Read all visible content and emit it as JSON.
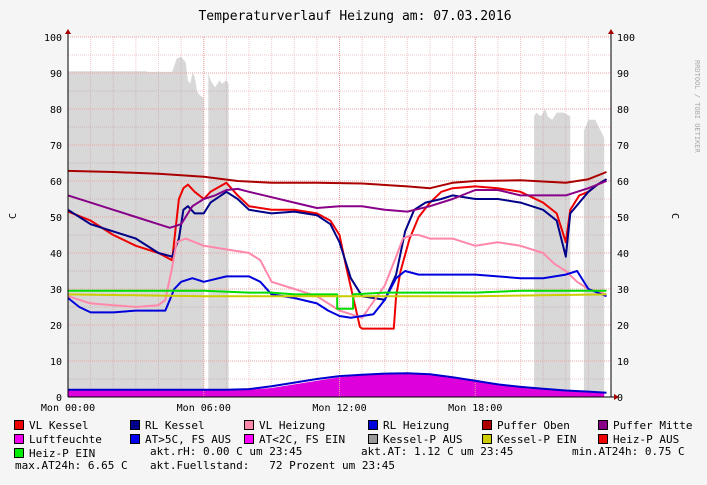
{
  "chart_data": {
    "type": "line",
    "title": "Temperaturverlauf Heizung am: 07.03.2016",
    "ylabel": "C",
    "ylabel_right": "C",
    "side_text": "RRDTOOL / TOBI OETIKER",
    "ylim": [
      0,
      100
    ],
    "xlim_hours": [
      0,
      24
    ],
    "y_ticks": [
      0,
      10,
      20,
      30,
      40,
      50,
      60,
      70,
      80,
      90,
      100
    ],
    "x_ticks": [
      {
        "h": 0,
        "label": "Mon 00:00"
      },
      {
        "h": 6,
        "label": "Mon 06:00"
      },
      {
        "h": 12,
        "label": "Mon 12:00"
      },
      {
        "h": 18,
        "label": "Mon 18:00"
      }
    ],
    "grid": true,
    "legend_position": "bottom",
    "areas": [
      {
        "name": "Kessel-P AUS",
        "color": "#999999",
        "x": [
          0,
          0,
          3.5,
          3.5,
          4.6,
          4.7,
          4.8,
          5.0,
          5.2,
          5.3,
          5.4,
          5.5,
          5.6,
          5.7,
          5.8,
          6.0,
          6.0,
          6.2,
          6.2,
          6.3,
          6.5,
          6.7,
          6.8,
          7.0,
          7.1,
          7.1,
          20.6,
          20.6,
          20.7,
          20.9,
          21.1,
          21.2,
          21.4,
          21.6,
          21.9,
          22.2,
          22.2,
          22.8,
          22.8,
          23.0,
          23.3,
          23.7,
          23.7
        ],
        "y": [
          0,
          90.5,
          90.5,
          90.3,
          90.3,
          92,
          94,
          94.5,
          93,
          88,
          87,
          90,
          89,
          85,
          84,
          83,
          0,
          0,
          90,
          88,
          86,
          88,
          87,
          88,
          87,
          0,
          0,
          78,
          79,
          78,
          80,
          78,
          77,
          79,
          79,
          78,
          0,
          0,
          74,
          77,
          77,
          72,
          0
        ]
      },
      {
        "name": "Luftfeuchte",
        "color": "#dd00dd",
        "x": [
          0,
          1,
          2,
          4,
          6,
          8,
          9,
          10,
          11,
          12,
          13,
          14,
          15,
          16,
          17,
          18,
          19,
          20,
          21,
          22,
          23,
          23.7,
          23.7,
          0
        ],
        "y": [
          1.8,
          2,
          2.2,
          2.1,
          1.9,
          2,
          2.5,
          3.5,
          4.5,
          5.5,
          6,
          6.3,
          6.4,
          6.1,
          5.4,
          4.5,
          3.5,
          2.8,
          2.3,
          1.8,
          1.5,
          1.4,
          0,
          0
        ]
      }
    ],
    "series": [
      {
        "name": "VL Kessel",
        "color": "#ee0000",
        "width": 2,
        "x": [
          0,
          1,
          2,
          3,
          4,
          4.6,
          4.9,
          5.1,
          5.3,
          5.6,
          6,
          6.3,
          7,
          7.5,
          8,
          9,
          10,
          11,
          11.6,
          12,
          12.3,
          12.9,
          13,
          14,
          14.4,
          14.5,
          14.7,
          15.1,
          15.5,
          16,
          16.5,
          17,
          18,
          19,
          20,
          21,
          21.6,
          22,
          22.2,
          22.6,
          23,
          23.4,
          23.8
        ],
        "y": [
          51.5,
          49,
          45,
          42,
          40,
          38,
          55,
          58,
          59,
          57,
          55,
          57,
          59.5,
          56,
          53,
          52,
          52,
          51,
          49,
          45,
          36,
          19.5,
          19,
          19,
          19,
          28,
          35,
          44,
          50,
          54,
          57,
          58,
          58.5,
          58,
          57,
          54,
          51,
          43,
          52,
          56,
          57,
          59,
          60.5
        ]
      },
      {
        "name": "RL Kessel",
        "color": "#000088",
        "width": 2,
        "x": [
          0,
          1,
          2,
          3,
          4,
          4.6,
          4.9,
          5.1,
          5.3,
          5.6,
          6,
          6.3,
          7,
          7.5,
          8,
          9,
          10,
          11,
          11.6,
          12,
          12.5,
          13,
          14,
          14.5,
          14.9,
          15.3,
          15.8,
          16.5,
          17,
          18,
          19,
          20,
          21,
          21.6,
          22,
          22.2,
          22.6,
          23,
          23.4,
          23.8
        ],
        "y": [
          52,
          48,
          46,
          44,
          40,
          39,
          44,
          52,
          53,
          51,
          51,
          54,
          57,
          55,
          52,
          51,
          51.5,
          50.5,
          48,
          43,
          33,
          28,
          27,
          34,
          46,
          52,
          54,
          55,
          56,
          55,
          55,
          54,
          52,
          49,
          39,
          51,
          54,
          57,
          59,
          60.5
        ]
      },
      {
        "name": "VL Heizung",
        "color": "#ff88aa",
        "width": 2,
        "x": [
          0,
          1,
          2,
          3,
          4,
          4.3,
          4.6,
          4.8,
          5.2,
          5.6,
          6,
          7,
          8,
          8.5,
          9,
          10,
          11,
          11.5,
          12,
          12.5,
          13,
          14,
          14.5,
          14.8,
          15.2,
          15.5,
          16,
          17,
          18,
          19,
          20,
          21,
          21.5,
          22,
          22.5,
          23,
          23.8
        ],
        "y": [
          28,
          26,
          25.5,
          25,
          25.5,
          27,
          36,
          43,
          44,
          43,
          42,
          41,
          40,
          38,
          32,
          30,
          28,
          26,
          24,
          23,
          22,
          31,
          39,
          44,
          45,
          45,
          44,
          44,
          42,
          43,
          42,
          40,
          37,
          35,
          32,
          30,
          28.5
        ]
      },
      {
        "name": "RL Heizung",
        "color": "#0000dd",
        "width": 2,
        "x": [
          0,
          0.5,
          1,
          2,
          3,
          4,
          4.3,
          4.7,
          5.0,
          5.5,
          6,
          7,
          8,
          8.5,
          9,
          10,
          11,
          11.5,
          12,
          12.5,
          13,
          13.5,
          14,
          14.5,
          14.9,
          15.5,
          16,
          17,
          18,
          19,
          20,
          21,
          22,
          22.5,
          23,
          23.8
        ],
        "y": [
          27.5,
          25,
          23.5,
          23.5,
          24,
          24,
          24,
          30,
          32,
          33,
          32,
          33.5,
          33.5,
          32,
          28.5,
          27.5,
          26,
          24,
          22.5,
          22,
          22.5,
          23,
          27,
          33,
          35,
          34,
          34,
          34,
          34,
          33.5,
          33,
          33,
          34,
          35,
          30,
          28
        ]
      },
      {
        "name": "Puffer Oben",
        "color": "#aa0000",
        "width": 2,
        "x": [
          0,
          2,
          4,
          6,
          7.5,
          9,
          11,
          13,
          15,
          16,
          17,
          18,
          20,
          22,
          23,
          23.8
        ],
        "y": [
          62.8,
          62.5,
          62,
          61.2,
          60,
          59.5,
          59.5,
          59.3,
          58.5,
          58,
          59.5,
          60,
          60.2,
          59.5,
          60.5,
          62.5
        ]
      },
      {
        "name": "Puffer Mitte",
        "color": "#880088",
        "width": 2,
        "x": [
          0,
          1,
          2,
          3,
          4,
          4.5,
          5,
          5.5,
          6,
          6.5,
          7,
          7.5,
          8,
          9,
          10,
          11,
          12,
          13,
          14,
          15,
          16,
          17,
          18,
          19,
          20,
          21,
          22,
          23,
          23.8
        ],
        "y": [
          56,
          54,
          52,
          50,
          48,
          47,
          48,
          53,
          55,
          56,
          57.5,
          57.8,
          57,
          55.5,
          54,
          52.5,
          53,
          53,
          52,
          51.5,
          53,
          55,
          57.5,
          57.5,
          56,
          56,
          56,
          58,
          60
        ]
      },
      {
        "name": "AT>5C, FS AUS",
        "color": "#0000cc",
        "width": 2,
        "x": [
          0,
          1,
          2,
          3,
          4,
          5,
          6,
          7,
          8,
          9,
          10,
          11,
          12,
          13,
          14,
          15,
          16,
          17,
          18,
          19,
          20,
          21,
          22,
          23,
          23.8
        ],
        "y": [
          2,
          2,
          2,
          2,
          2,
          2,
          2,
          2,
          2.2,
          3,
          4,
          5,
          5.8,
          6.2,
          6.5,
          6.6,
          6.3,
          5.5,
          4.5,
          3.5,
          2.8,
          2.3,
          1.8,
          1.5,
          1.2
        ]
      },
      {
        "name": "Heiz-P EIN",
        "color": "#00dd00",
        "width": 2,
        "x": [
          0,
          6,
          8,
          9,
          10,
          11,
          11.9,
          11.9,
          12.6,
          12.6,
          14,
          16,
          18,
          20,
          22,
          23.8
        ],
        "y": [
          29.5,
          29.5,
          29,
          29,
          28.5,
          28.5,
          28.5,
          24.5,
          24.5,
          28.5,
          29,
          29,
          29,
          29.5,
          29.5,
          29.5
        ]
      },
      {
        "name": "Kessel-P EIN",
        "color": "#cccc00",
        "width": 2,
        "x": [
          0,
          6,
          12,
          18,
          23.8
        ],
        "y": [
          28.5,
          28,
          28,
          28,
          28.5
        ]
      }
    ],
    "legend_items": [
      {
        "label": "VL Kessel",
        "color": "#ee0000"
      },
      {
        "label": "RL Kessel",
        "color": "#000088"
      },
      {
        "label": "VL Heizung",
        "color": "#ff88aa"
      },
      {
        "label": "RL Heizung",
        "color": "#0000dd"
      },
      {
        "label": "Puffer Oben",
        "color": "#aa0000"
      },
      {
        "label": "Puffer Mitte",
        "color": "#880088"
      },
      {
        "label": "Luftfeuchte",
        "color": "#ee00ee"
      },
      {
        "label": "AT>5C, FS AUS",
        "color": "#0000ee"
      },
      {
        "label": "AT<2C, FS EIN",
        "color": "#ff00ff"
      },
      {
        "label": "Kessel-P AUS",
        "color": "#999999"
      },
      {
        "label": "Kessel-P EIN",
        "color": "#cccc00"
      },
      {
        "label": "Heiz-P AUS",
        "color": "#ee0000"
      },
      {
        "label": "Heiz-P EIN",
        "color": "#00ee00"
      }
    ]
  },
  "stats": {
    "akt_rh": "akt.rH: 0.00 C um 23:45",
    "akt_at": "akt.AT: 1.12 C um 23:45",
    "min_at24h": "min.AT24h: 0.75 C",
    "max_at24h": "max.AT24h: 6.65 C",
    "fuellstand": "akt.Fuellstand:   72 Prozent um 23:45"
  }
}
